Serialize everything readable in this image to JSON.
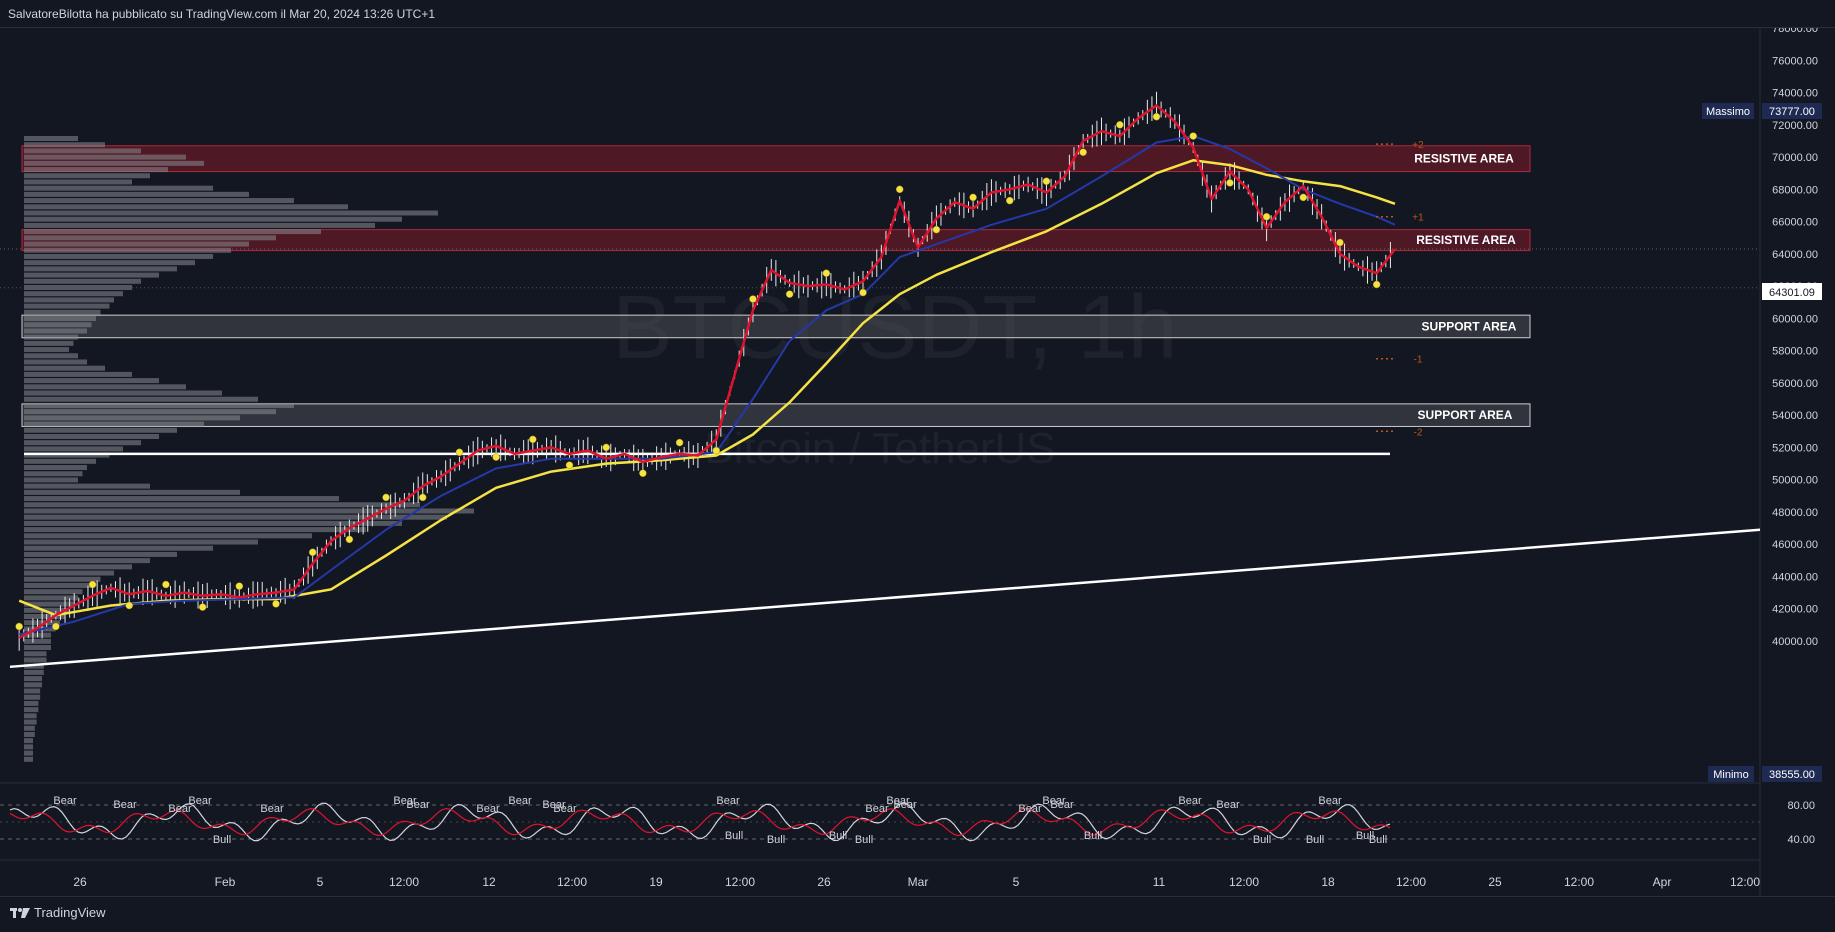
{
  "header": {
    "publish_info": "SalvatoreBilotta ha pubblicato su TradingView.com il Mar 20, 2024 13:26 UTC+1"
  },
  "footer": {
    "brand": "TradingView"
  },
  "watermark": {
    "symbol": "BTCUSDT, 1h",
    "description": "Bitcoin / TetherUS"
  },
  "colors": {
    "background": "#131722",
    "resistive_zone": "#801a28",
    "support_zone": "#4a4c52",
    "ema_fast": "#e0132e",
    "ema_mid": "#2538a8",
    "ema_slow": "#f5e245",
    "trendline": "#ffffff",
    "current_price_bg": "#ffffff",
    "max_min_bg": "#1e2a52"
  },
  "chart_data": [
    {
      "type": "line",
      "title": "",
      "xlabel": "",
      "ylabel": "",
      "x_ticks": [
        "26",
        "Feb",
        "5",
        "12:00",
        "12",
        "12:00",
        "19",
        "12:00",
        "26",
        "Mar",
        "5",
        "11",
        "12:00",
        "18",
        "12:00",
        "25",
        "12:00",
        "Apr",
        "12:00"
      ],
      "y_ticks": [
        "78000.00",
        "76000.00",
        "74000.00",
        "72000.00",
        "70000.00",
        "68000.00",
        "66000.00",
        "64000.00",
        "62000.00",
        "60000.00",
        "58000.00",
        "56000.00",
        "54000.00",
        "52000.00",
        "50000.00",
        "48000.00",
        "46000.00",
        "44000.00",
        "42000.00",
        "40000.00"
      ],
      "ylim": [
        38000,
        79200
      ],
      "grid": false,
      "series": [
        {
          "values": [
            [
              1,
              40200
            ],
            [
              3,
              40800
            ],
            [
              5,
              41600
            ],
            [
              7,
              42200
            ],
            [
              9,
              42800
            ],
            [
              11,
              43300
            ],
            [
              13,
              42900
            ],
            [
              15,
              43100
            ],
            [
              17,
              42800
            ],
            [
              19,
              43000
            ],
            [
              21,
              42800
            ],
            [
              23,
              42900
            ],
            [
              25,
              42700
            ],
            [
              27,
              42900
            ],
            [
              29,
              43000
            ],
            [
              31,
              43200
            ],
            [
              33,
              44800
            ],
            [
              35,
              46200
            ],
            [
              37,
              47000
            ],
            [
              39,
              47600
            ],
            [
              41,
              48200
            ],
            [
              43,
              48700
            ],
            [
              45,
              49600
            ],
            [
              47,
              50200
            ],
            [
              49,
              51000
            ],
            [
              51,
              51800
            ],
            [
              53,
              52100
            ],
            [
              55,
              51600
            ],
            [
              57,
              51800
            ],
            [
              59,
              52000
            ],
            [
              61,
              51600
            ],
            [
              63,
              51800
            ],
            [
              65,
              51300
            ],
            [
              67,
              51600
            ],
            [
              69,
              51100
            ],
            [
              71,
              51400
            ],
            [
              73,
              51600
            ],
            [
              75,
              51500
            ],
            [
              77,
              52500
            ],
            [
              79,
              56500
            ],
            [
              81,
              60500
            ],
            [
              83,
              63000
            ],
            [
              85,
              62200
            ],
            [
              87,
              62000
            ],
            [
              89,
              62100
            ],
            [
              91,
              61800
            ],
            [
              93,
              62300
            ],
            [
              95,
              63800
            ],
            [
              97,
              67300
            ],
            [
              99,
              64400
            ],
            [
              101,
              66200
            ],
            [
              103,
              67200
            ],
            [
              105,
              66800
            ],
            [
              107,
              67800
            ],
            [
              109,
              68000
            ],
            [
              111,
              68300
            ],
            [
              113,
              67800
            ],
            [
              115,
              68800
            ],
            [
              117,
              71000
            ],
            [
              119,
              71600
            ],
            [
              121,
              71300
            ],
            [
              123,
              72400
            ],
            [
              125,
              73200
            ],
            [
              127,
              72200
            ],
            [
              129,
              70600
            ],
            [
              131,
              67400
            ],
            [
              133,
              69100
            ],
            [
              135,
              68000
            ],
            [
              137,
              65600
            ],
            [
              139,
              67200
            ],
            [
              141,
              68200
            ],
            [
              143,
              66300
            ],
            [
              145,
              64000
            ],
            [
              147,
              63200
            ],
            [
              149,
              62800
            ],
            [
              151,
              64300
            ]
          ]
        },
        {
          "values": [
            [
              1,
              40400
            ],
            [
              7,
              41200
            ],
            [
              13,
              42300
            ],
            [
              19,
              42500
            ],
            [
              25,
              42600
            ],
            [
              31,
              42700
            ],
            [
              35,
              44400
            ],
            [
              41,
              46900
            ],
            [
              47,
              49000
            ],
            [
              53,
              50700
            ],
            [
              59,
              51300
            ],
            [
              65,
              51300
            ],
            [
              71,
              51300
            ],
            [
              77,
              51700
            ],
            [
              81,
              55000
            ],
            [
              85,
              58600
            ],
            [
              89,
              60500
            ],
            [
              93,
              61500
            ],
            [
              97,
              63800
            ],
            [
              101,
              64600
            ],
            [
              107,
              65800
            ],
            [
              113,
              66800
            ],
            [
              119,
              68800
            ],
            [
              125,
              70900
            ],
            [
              129,
              71300
            ],
            [
              133,
              70500
            ],
            [
              137,
              69300
            ],
            [
              141,
              68000
            ],
            [
              145,
              67100
            ],
            [
              149,
              66300
            ],
            [
              151,
              65800
            ]
          ]
        },
        {
          "values": [
            [
              1,
              42500
            ],
            [
              5,
              41600
            ],
            [
              11,
              42200
            ],
            [
              17,
              42500
            ],
            [
              23,
              42600
            ],
            [
              29,
              42600
            ],
            [
              35,
              43200
            ],
            [
              41,
              45300
            ],
            [
              47,
              47500
            ],
            [
              53,
              49500
            ],
            [
              59,
              50500
            ],
            [
              65,
              51000
            ],
            [
              71,
              51200
            ],
            [
              77,
              51500
            ],
            [
              81,
              52800
            ],
            [
              85,
              54800
            ],
            [
              89,
              57200
            ],
            [
              93,
              59700
            ],
            [
              97,
              61500
            ],
            [
              101,
              62700
            ],
            [
              107,
              64100
            ],
            [
              113,
              65400
            ],
            [
              119,
              67100
            ],
            [
              125,
              69000
            ],
            [
              129,
              69800
            ],
            [
              133,
              69500
            ],
            [
              137,
              68900
            ],
            [
              141,
              68500
            ],
            [
              145,
              68200
            ],
            [
              149,
              67500
            ],
            [
              151,
              67100
            ]
          ]
        }
      ]
    },
    {
      "type": "bar",
      "title": "",
      "categories": [],
      "values": []
    },
    {
      "type": "line",
      "title": "",
      "y_ticks": [
        "80.00",
        "40.00"
      ],
      "ylim": [
        20,
        100
      ],
      "annotations": [
        "Bear",
        "Bear",
        "Bear",
        "Bear",
        "Bull",
        "Bear",
        "Bear",
        "Bear",
        "Bear",
        "Bear",
        "Bear",
        "Bear",
        "Bear",
        "Bull",
        "Bull",
        "Bull",
        "Bull",
        "Bear",
        "Bear",
        "Bear",
        "Bear",
        "Bear",
        "Bear",
        "Bull",
        "Bear",
        "Bear",
        "Bull",
        "Bear",
        "Bull",
        "Bull",
        "Bull"
      ]
    }
  ],
  "price_scale": {
    "max_label": "Massimo",
    "max_value": "73777.00",
    "min_label": "Minimo",
    "min_value": "38555.00",
    "current_value": "64301.09"
  },
  "zones": [
    {
      "label": "RESISTIVE AREA",
      "kind": "resistive",
      "from": 69100,
      "to": 70700
    },
    {
      "label": "RESISTIVE AREA",
      "kind": "resistive",
      "from": 64200,
      "to": 65500
    },
    {
      "label": "SUPPORT AREA",
      "kind": "support",
      "from": 58800,
      "to": 60200
    },
    {
      "label": "SUPPORT AREA",
      "kind": "support",
      "from": 53300,
      "to": 54700
    }
  ],
  "pivot_levels": [
    "+2",
    "+1",
    "-1",
    "-2"
  ],
  "horizontal_line": 51600,
  "trendline": {
    "from": 38400,
    "to": 46900
  }
}
